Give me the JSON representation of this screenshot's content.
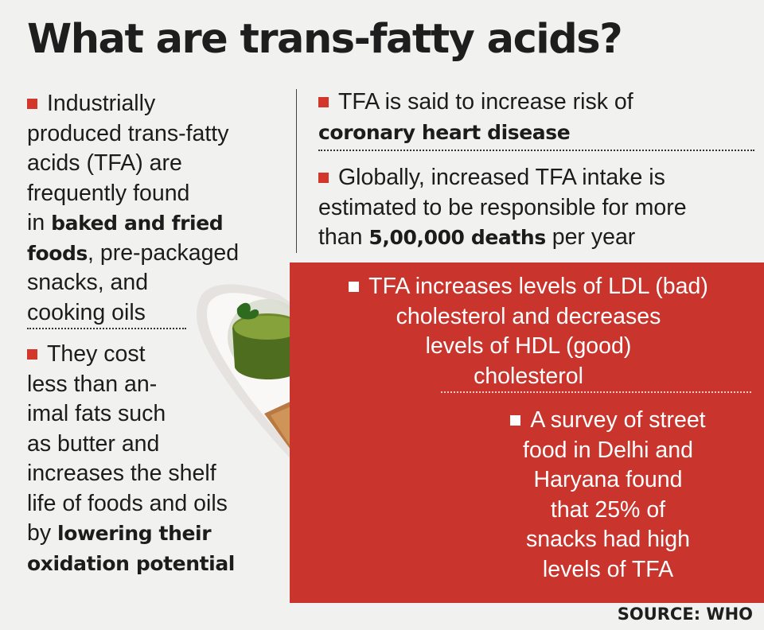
{
  "title": "What are trans-fatty acids?",
  "left_col": {
    "p1": {
      "l1": "Industrially",
      "l2": "produced trans-fatty",
      "l3": "acids (TFA) are",
      "l4": "frequently found",
      "l5_pre": "in ",
      "l5_bold": "baked and fried",
      "l6_bold": "foods",
      "l6_post": ", pre-packaged",
      "l7": "snacks, and",
      "l8": "cooking oils"
    },
    "p2": {
      "l1": "They cost",
      "l2": "less than an-",
      "l3": "imal fats such",
      "l4": "as butter and",
      "l5": "increases the shelf",
      "l6": "life of foods and oils",
      "l7_pre": "by ",
      "l7_bold": "lowering their",
      "l8_bold": "oxidation potential"
    }
  },
  "right_col": {
    "p1": {
      "l1": "TFA is said to increase risk of",
      "l2_bold": "coronary heart disease"
    },
    "p2": {
      "l1": "Globally, increased TFA intake is",
      "l2": "estimated to be responsible for more",
      "l3_pre": "than ",
      "l3_bold": "5,00,000 deaths",
      "l3_post": " per year"
    }
  },
  "red_box": {
    "p1": {
      "l1": "TFA increases levels of LDL (bad)",
      "l2": "cholesterol and decreases",
      "l3": "levels of HDL (good)",
      "l4": "cholesterol"
    },
    "p2": {
      "l1": "A survey of street",
      "l2": "food in Delhi and",
      "l3": "Haryana found",
      "l4": "that 25% of",
      "l5": "snacks had high",
      "l6": "levels of TFA"
    }
  },
  "source": "SOURCE: WHO",
  "colors": {
    "accent_red": "#c9342d",
    "bullet_red": "#d3362b",
    "background": "#f1f1f0",
    "text": "#1c1c1c"
  }
}
